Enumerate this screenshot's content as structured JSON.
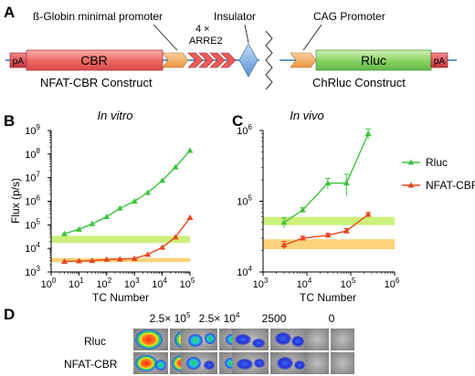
{
  "panels": {
    "a": {
      "letter": "A",
      "label_globin": "ß-Globin minimal promoter",
      "label_insulator": "Insulator",
      "label_cag": "CAG Promoter",
      "label_arre_count": "4 ×",
      "label_arre": "ARRE2",
      "label_pa_left": "pA",
      "label_pa_right": "pA",
      "label_cbr": "CBR",
      "label_rluc": "Rluc",
      "construct_left": "NFAT-CBR Construct",
      "construct_right": "ChRluc Construct"
    },
    "b": {
      "letter": "B",
      "title": "In vitro"
    },
    "c": {
      "letter": "C",
      "title": "In vivo"
    },
    "d": {
      "letter": "D",
      "columns": [
        "2.5× 10",
        "2.5× 10",
        "2500",
        "0"
      ],
      "column_exponents": [
        "5",
        "4",
        "",
        ""
      ],
      "rows": [
        "Rluc",
        "NFAT-CBR"
      ]
    }
  },
  "colors": {
    "green": "#3cc43c",
    "red": "#e8431e",
    "green_band": "#ccf07a",
    "orange_band": "#fcd27a",
    "cbr_box": "#f07a76",
    "rluc_box": "#8ed66a",
    "arre": "#ee5a5a",
    "promoter": "#f4a35a",
    "insulator": "#7aaee6",
    "pa": "#d8424a"
  },
  "chart_data": [
    {
      "type": "line",
      "title": "In vitro",
      "xlabel": "TC Number",
      "ylabel": "Flux (p/s)",
      "xscale": "log",
      "yscale": "log",
      "xlim": [
        1,
        100000
      ],
      "ylim": [
        1000,
        1000000000
      ],
      "xticks": [
        "10",
        "10",
        "10",
        "10",
        "10",
        "10"
      ],
      "xtick_exponents": [
        "0",
        "1",
        "2",
        "3",
        "4",
        "5"
      ],
      "yticks": [
        "10",
        "10",
        "10",
        "10",
        "10",
        "10",
        "10"
      ],
      "ytick_exponents": [
        "3",
        "4",
        "5",
        "6",
        "7",
        "8",
        "9"
      ],
      "bands": [
        {
          "color": "#ccf07a",
          "y_from": 17000,
          "y_to": 34000
        },
        {
          "color": "#fcd27a",
          "y_from": 2600,
          "y_to": 3900
        }
      ],
      "series": [
        {
          "name": "Rluc",
          "color": "#3cc43c",
          "x": [
            3,
            10,
            30,
            100,
            300,
            1000,
            3000,
            10000,
            30000,
            100000
          ],
          "y": [
            42000,
            64000,
            110000,
            220000,
            500000,
            1000000,
            2300000,
            7500000,
            28000000,
            140000000
          ]
        },
        {
          "name": "NFAT-CBR",
          "color": "#e8431e",
          "x": [
            3,
            10,
            30,
            100,
            300,
            1000,
            3000,
            10000,
            30000,
            100000
          ],
          "y": [
            2800,
            2900,
            3000,
            3400,
            3500,
            3700,
            5500,
            11000,
            30000,
            200000
          ]
        }
      ]
    },
    {
      "type": "line",
      "title": "In vivo",
      "xlabel": "TC Number",
      "ylabel": "",
      "xscale": "log",
      "yscale": "log",
      "xlim": [
        1000,
        1000000
      ],
      "ylim": [
        10000,
        1000000
      ],
      "xticks": [
        "10",
        "10",
        "10",
        "10"
      ],
      "xtick_exponents": [
        "3",
        "4",
        "5",
        "6"
      ],
      "yticks": [
        "10",
        "10",
        "10"
      ],
      "ytick_exponents": [
        "4",
        "5",
        "6"
      ],
      "legend": "right",
      "bands": [
        {
          "color": "#ccf07a",
          "y_from": 46000,
          "y_to": 60000
        },
        {
          "color": "#fcd27a",
          "y_from": 21000,
          "y_to": 29000
        }
      ],
      "series": [
        {
          "name": "Rluc",
          "color": "#3cc43c",
          "x": [
            3000,
            8000,
            30000,
            80000,
            250000
          ],
          "y": [
            50000,
            75000,
            180000,
            180000,
            900000
          ],
          "err": [
            8000,
            6000,
            30000,
            60000,
            150000
          ]
        },
        {
          "name": "NFAT-CBR",
          "color": "#e8431e",
          "x": [
            3000,
            8000,
            30000,
            80000,
            250000
          ],
          "y": [
            24000,
            30000,
            33000,
            38000,
            65000
          ],
          "err": [
            3000,
            2000,
            2000,
            3000,
            4000
          ]
        }
      ]
    }
  ]
}
